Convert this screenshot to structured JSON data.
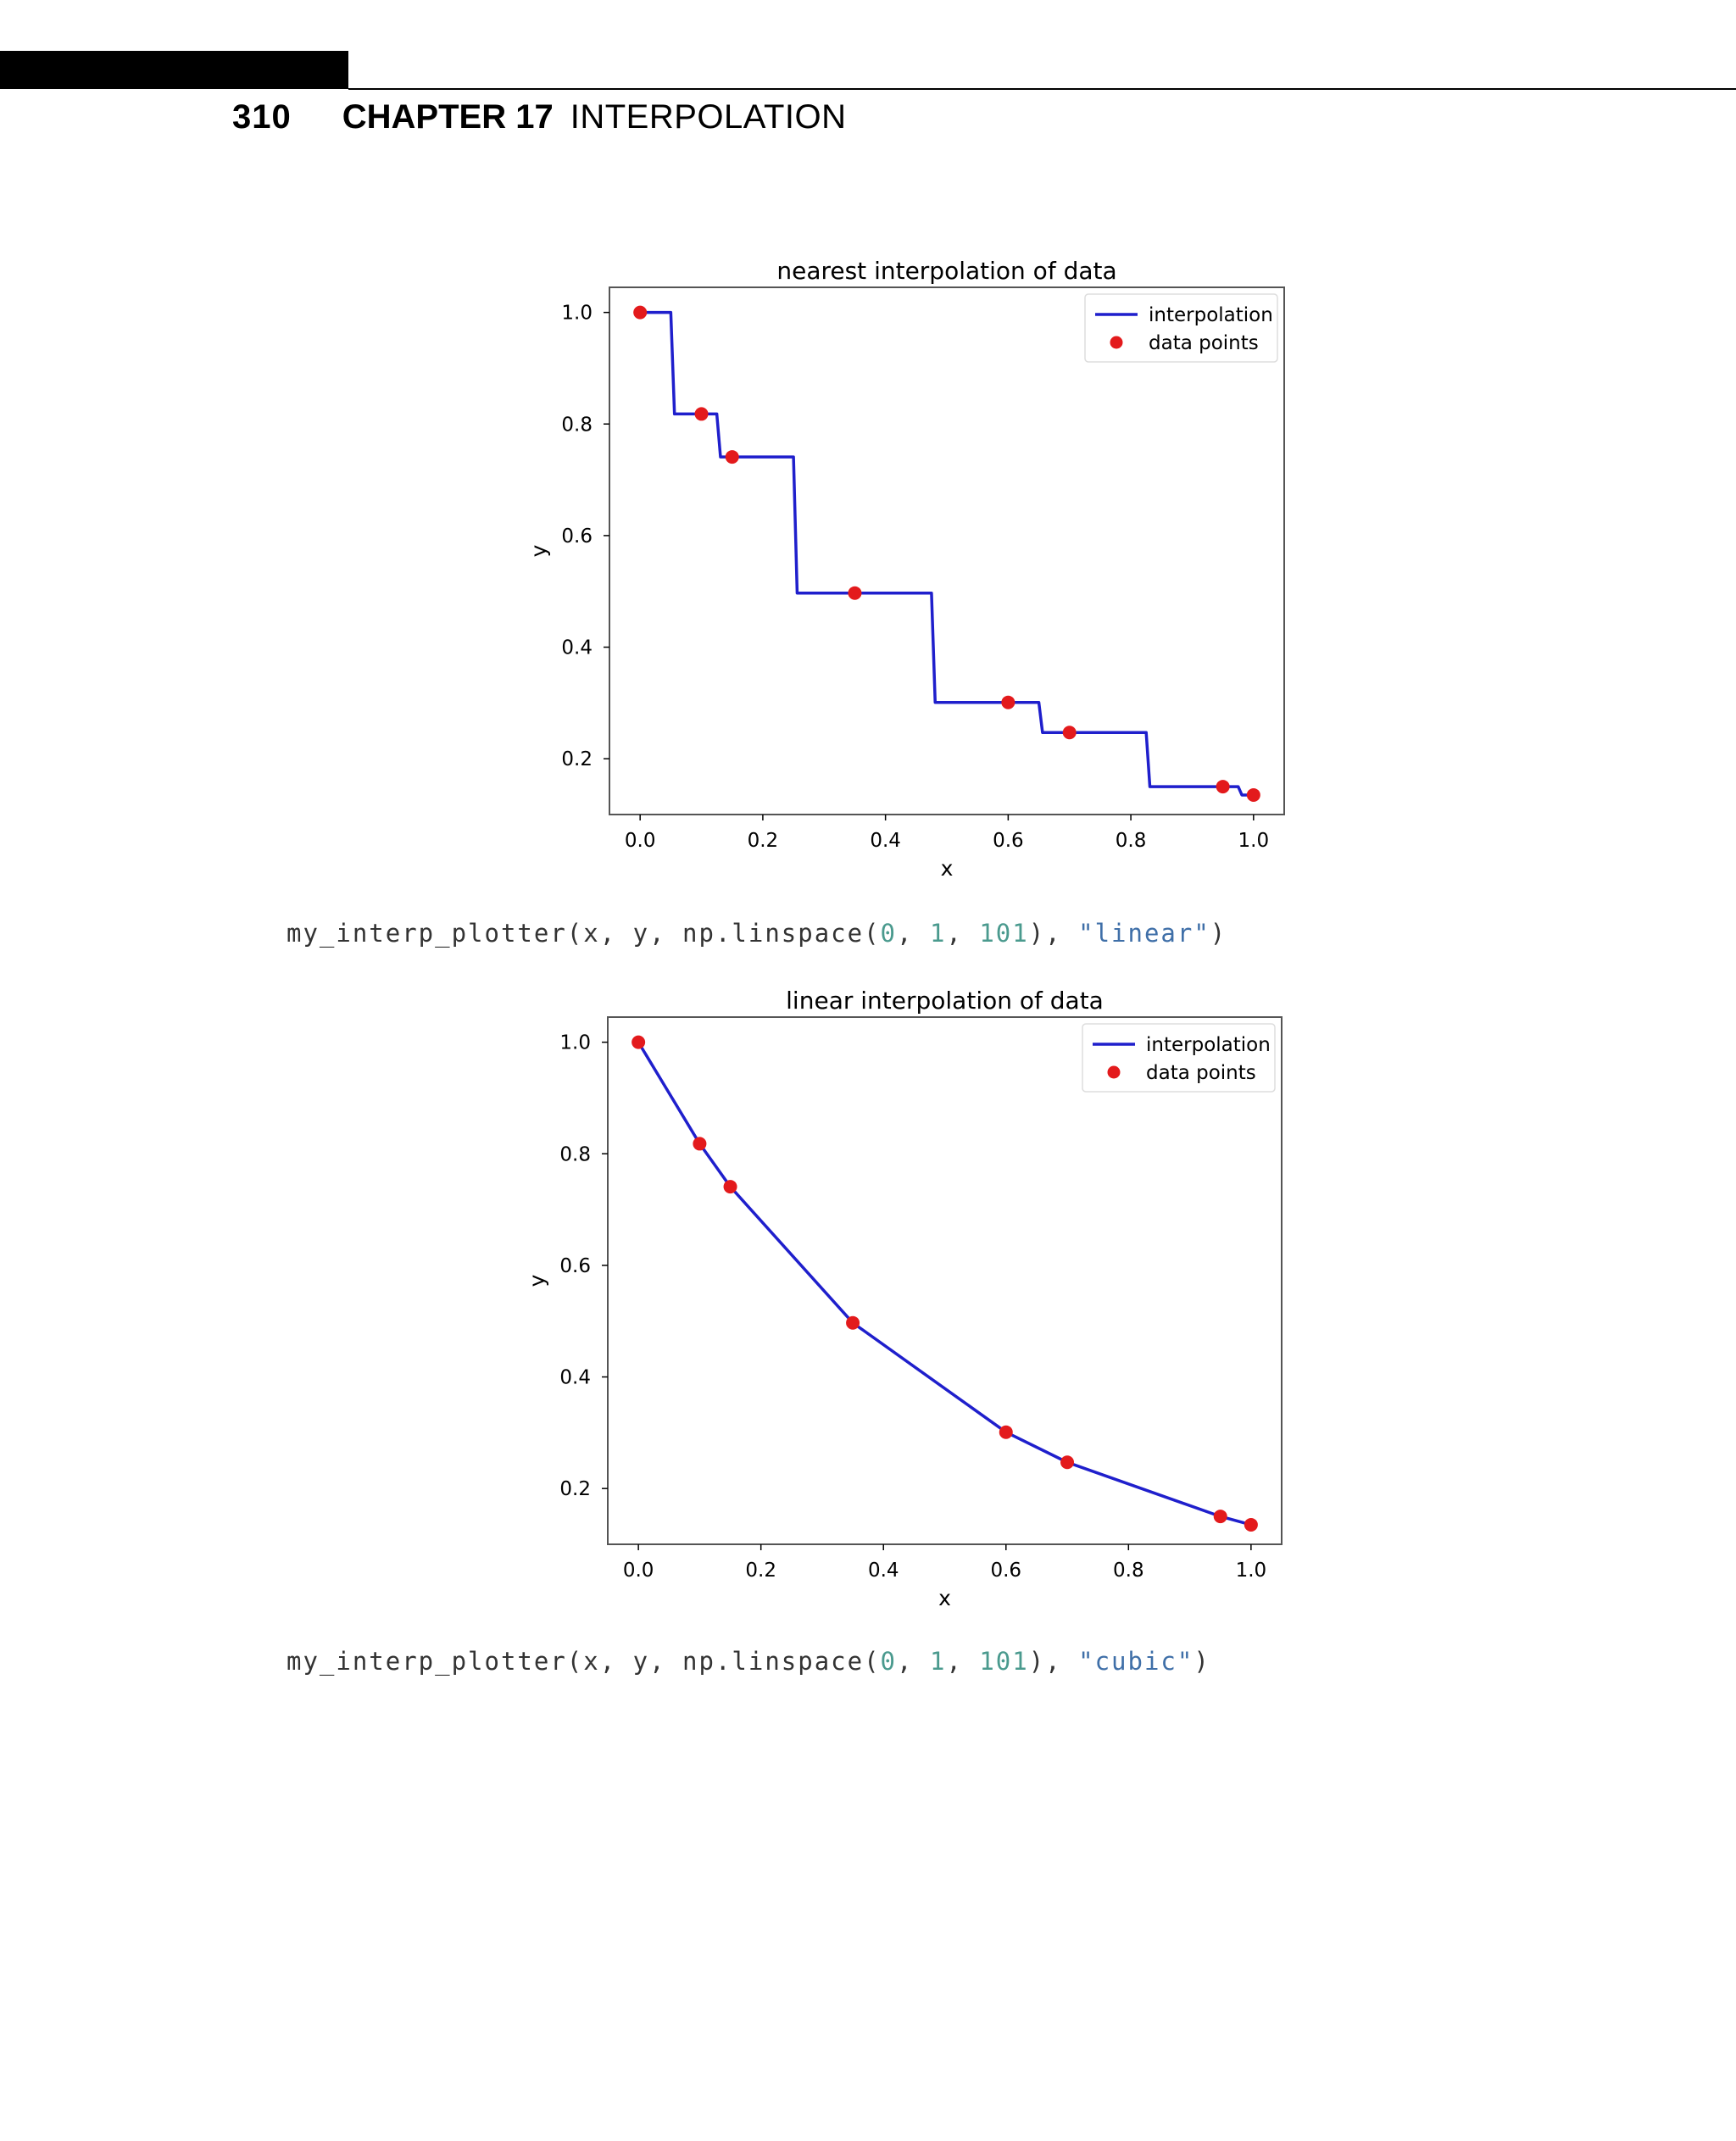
{
  "header": {
    "page_number": "310",
    "chapter_label": "CHAPTER 17",
    "chapter_title": "INTERPOLATION"
  },
  "code_lines": [
    {
      "prefix": "my_interp_plotter(x, y, np.linspace(",
      "n1": "0",
      "sep1": ", ",
      "n2": "1",
      "sep2": ", ",
      "n3": "101",
      "mid": "), ",
      "str": "\"linear\"",
      "suffix": ")"
    },
    {
      "prefix": "my_interp_plotter(x, y, np.linspace(",
      "n1": "0",
      "sep1": ", ",
      "n2": "1",
      "sep2": ", ",
      "n3": "101",
      "mid": "), ",
      "str": "\"cubic\"",
      "suffix": ")"
    }
  ],
  "chart_data": [
    {
      "type": "line",
      "interpolation": "nearest",
      "title": "nearest interpolation of data",
      "xlabel": "x",
      "ylabel": "y",
      "xlim": [
        -0.05,
        1.05
      ],
      "ylim": [
        0.1,
        1.045
      ],
      "xticks": [
        "0.0",
        "0.2",
        "0.4",
        "0.6",
        "0.8",
        "1.0"
      ],
      "yticks": [
        "0.2",
        "0.4",
        "0.6",
        "0.8",
        "1.0"
      ],
      "grid": false,
      "legend_position": "top-right",
      "series": [
        {
          "name": "interpolation",
          "color": "#1f1fcc",
          "style": "line"
        },
        {
          "name": "data points",
          "color": "#e31a1c",
          "style": "markers"
        }
      ],
      "points": {
        "x": [
          0.0,
          0.1,
          0.15,
          0.35,
          0.6,
          0.7,
          0.95,
          1.0
        ],
        "y": [
          1.0,
          0.818,
          0.741,
          0.497,
          0.301,
          0.247,
          0.15,
          0.135
        ]
      }
    },
    {
      "type": "line",
      "interpolation": "linear",
      "title": "linear interpolation of data",
      "xlabel": "x",
      "ylabel": "y",
      "xlim": [
        -0.05,
        1.05
      ],
      "ylim": [
        0.1,
        1.045
      ],
      "xticks": [
        "0.0",
        "0.2",
        "0.4",
        "0.6",
        "0.8",
        "1.0"
      ],
      "yticks": [
        "0.2",
        "0.4",
        "0.6",
        "0.8",
        "1.0"
      ],
      "grid": false,
      "legend_position": "top-right",
      "series": [
        {
          "name": "interpolation",
          "color": "#1f1fcc",
          "style": "line"
        },
        {
          "name": "data points",
          "color": "#e31a1c",
          "style": "markers"
        }
      ],
      "points": {
        "x": [
          0.0,
          0.1,
          0.15,
          0.35,
          0.6,
          0.7,
          0.95,
          1.0
        ],
        "y": [
          1.0,
          0.818,
          0.741,
          0.497,
          0.301,
          0.247,
          0.15,
          0.135
        ]
      }
    }
  ]
}
